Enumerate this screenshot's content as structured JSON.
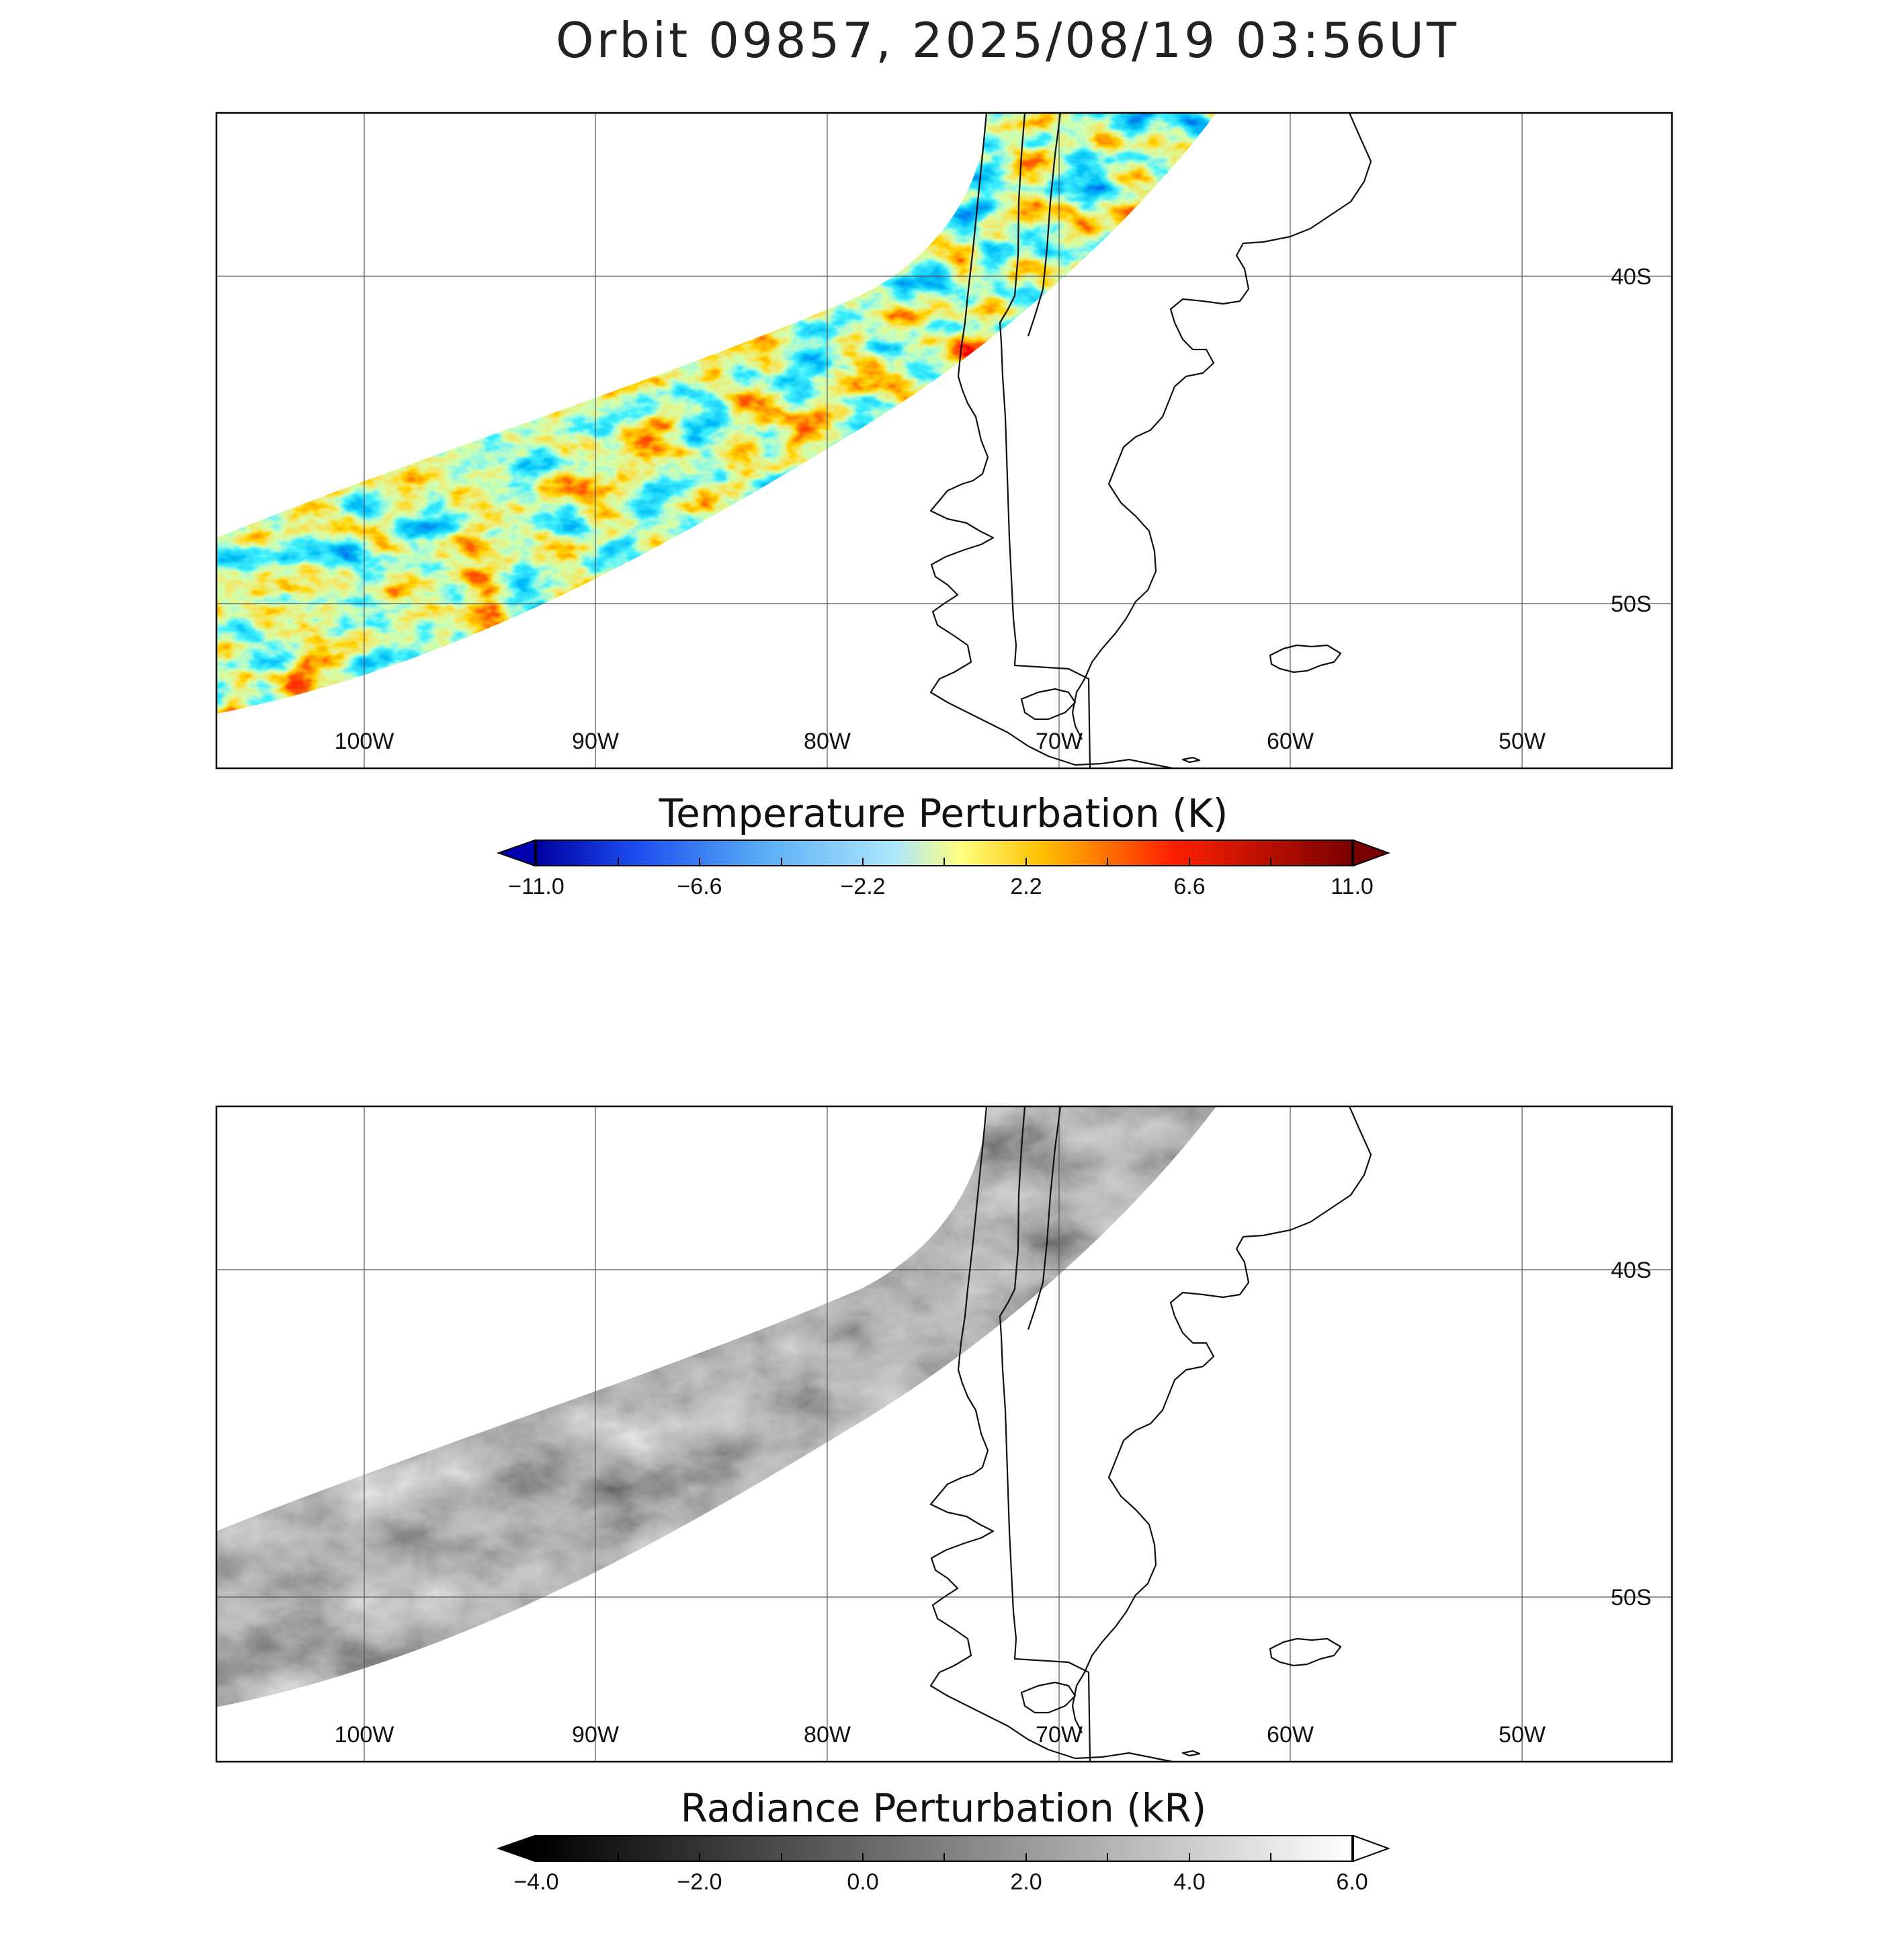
{
  "title": "Orbit 09857, 2025/08/19 03:56UT",
  "panels": [
    {
      "id": "temperature",
      "colormap": "temperature",
      "colorbar": {
        "title": "Temperature Perturbation (K)",
        "tick_labels": [
          "−11.0",
          "−6.6",
          "−2.2",
          "2.2",
          "6.6",
          "11.0"
        ],
        "range": [
          -11.0,
          11.0
        ]
      }
    },
    {
      "id": "radiance",
      "colormap": "grayscale",
      "colorbar": {
        "title": "Radiance Perturbation (kR)",
        "tick_labels": [
          "−4.0",
          "−2.0",
          "0.0",
          "2.0",
          "4.0",
          "6.0"
        ],
        "range": [
          -4.0,
          6.0
        ]
      }
    }
  ],
  "map": {
    "lon_labels": [
      "100W",
      "90W",
      "80W",
      "70W",
      "60W",
      "50W"
    ],
    "lat_labels": [
      "40S",
      "50S"
    ]
  },
  "colors": {
    "temperature_stops": [
      "#00008b",
      "#0a2ee0",
      "#3d8cf0",
      "#a8e4fb",
      "#ffff66",
      "#ffb300",
      "#ff2200",
      "#a00000",
      "#6b0000"
    ],
    "gray_low": "#000000",
    "gray_high": "#ffffff"
  }
}
